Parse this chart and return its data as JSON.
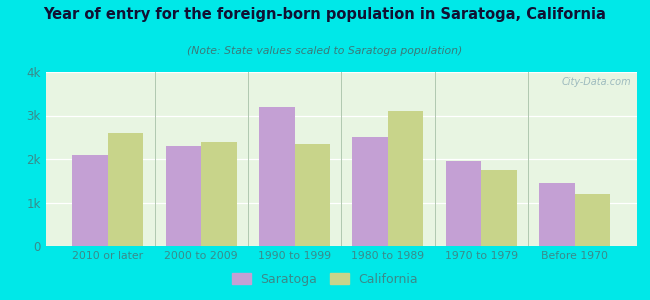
{
  "title": "Year of entry for the foreign-born population in Saratoga, California",
  "subtitle": "(Note: State values scaled to Saratoga population)",
  "categories": [
    "2010 or later",
    "2000 to 2009",
    "1990 to 1999",
    "1980 to 1989",
    "1970 to 1979",
    "Before 1970"
  ],
  "saratoga_values": [
    2100,
    2300,
    3200,
    2500,
    1950,
    1450
  ],
  "california_values": [
    2600,
    2400,
    2350,
    3100,
    1750,
    1200
  ],
  "saratoga_color": "#c4a0d4",
  "california_color": "#c8d48a",
  "background_outer": "#00e8e8",
  "background_inner_top": "#e8f5e2",
  "background_inner_bottom": "#d4eecc",
  "title_color": "#111133",
  "subtitle_color": "#3a7a7a",
  "axis_label_color": "#3a8a8a",
  "ylim": [
    0,
    4000
  ],
  "yticks": [
    0,
    1000,
    2000,
    3000,
    4000
  ],
  "ytick_labels": [
    "0",
    "1k",
    "2k",
    "3k",
    "4k"
  ],
  "bar_width": 0.38,
  "legend_saratoga": "Saratoga",
  "legend_california": "California",
  "grid_color": "#ffffff",
  "separator_color": "#b0c8b0"
}
